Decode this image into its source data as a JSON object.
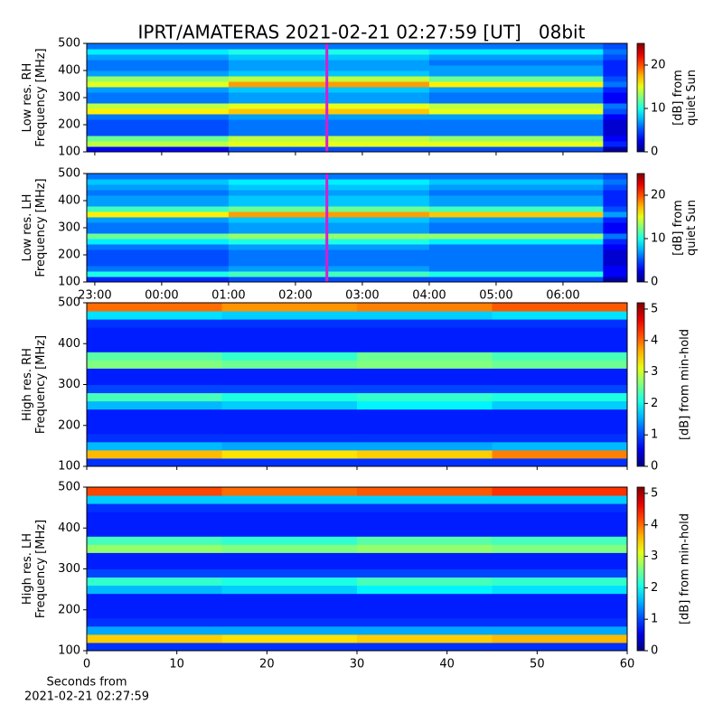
{
  "title": "IPRT/AMATERAS 2021-02-21 02:27:59 [UT]   08bit",
  "chart_data": [
    {
      "type": "heatmap",
      "ylabel": [
        "Low res. RH",
        "Frequency [MHz]"
      ],
      "colorbar_label": [
        "[dB] from",
        "quiet Sun"
      ],
      "x": [
        22.88,
        25,
        28,
        30.6,
        30.96
      ],
      "y": [
        100,
        120,
        140,
        160,
        180,
        200,
        220,
        240,
        260,
        280,
        300,
        320,
        340,
        360,
        380,
        400,
        420,
        440,
        460,
        480,
        500
      ],
      "xlim": [
        22.88,
        30.96
      ],
      "xticks": [
        23,
        24,
        25,
        26,
        27,
        28,
        29,
        30
      ],
      "xtick_labels": false,
      "ylim": [
        100,
        500
      ],
      "yticks": [
        100,
        200,
        300,
        400,
        500
      ],
      "clim": [
        0,
        25
      ],
      "cticks": [
        0,
        10,
        20
      ],
      "markers": [
        {
          "x": 26.47,
          "color": "#d21fd2"
        }
      ],
      "z": [
        [
          3,
          5,
          5,
          1
        ],
        [
          14,
          15,
          15,
          4
        ],
        [
          12,
          14,
          13,
          3
        ],
        [
          5,
          6,
          6,
          2
        ],
        [
          5,
          6,
          6,
          2
        ],
        [
          5,
          6,
          6,
          2
        ],
        [
          6,
          7,
          7,
          3
        ],
        [
          16,
          17,
          15,
          5
        ],
        [
          14,
          15,
          14,
          6
        ],
        [
          6,
          7,
          6,
          3
        ],
        [
          6,
          7,
          6,
          3
        ],
        [
          7,
          8,
          7,
          4
        ],
        [
          15,
          18,
          16,
          6
        ],
        [
          13,
          14,
          12,
          5
        ],
        [
          7,
          8,
          7,
          4
        ],
        [
          6,
          7,
          7,
          4
        ],
        [
          6,
          7,
          6,
          4
        ],
        [
          7,
          8,
          7,
          5
        ],
        [
          9,
          10,
          9,
          6
        ],
        [
          6,
          6,
          6,
          5
        ]
      ]
    },
    {
      "type": "heatmap",
      "ylabel": [
        "Low res. LH",
        "Frequency [MHz]"
      ],
      "colorbar_label": [
        "[dB] from",
        "quiet Sun"
      ],
      "x": [
        22.88,
        25,
        28,
        30.6,
        30.96
      ],
      "y": [
        100,
        120,
        140,
        160,
        180,
        200,
        220,
        240,
        260,
        280,
        300,
        320,
        340,
        360,
        380,
        400,
        420,
        440,
        460,
        480,
        500
      ],
      "xlim": [
        22.88,
        30.96
      ],
      "xticks": [
        {
          "value": 23,
          "label": "23:00"
        },
        {
          "value": 24,
          "label": "00:00"
        },
        {
          "value": 25,
          "label": "01:00"
        },
        {
          "value": 26,
          "label": "02:00"
        },
        {
          "value": 27,
          "label": "03:00"
        },
        {
          "value": 28,
          "label": "04:00"
        },
        {
          "value": 29,
          "label": "05:00"
        },
        {
          "value": 30,
          "label": "06:00"
        }
      ],
      "xtick_labels": true,
      "ylim": [
        100,
        500
      ],
      "yticks": [
        100,
        200,
        300,
        400,
        500
      ],
      "clim": [
        0,
        25
      ],
      "cticks": [
        0,
        10,
        20
      ],
      "markers": [
        {
          "x": 26.47,
          "color": "#d21fd2"
        }
      ],
      "z": [
        [
          4,
          5,
          5,
          1
        ],
        [
          10,
          11,
          10,
          3
        ],
        [
          6,
          7,
          6,
          3
        ],
        [
          5,
          6,
          6,
          2
        ],
        [
          5,
          6,
          6,
          2
        ],
        [
          5,
          6,
          6,
          2
        ],
        [
          6,
          7,
          6,
          3
        ],
        [
          9,
          10,
          9,
          4
        ],
        [
          12,
          13,
          13,
          6
        ],
        [
          6,
          7,
          6,
          3
        ],
        [
          6,
          7,
          6,
          3
        ],
        [
          7,
          8,
          7,
          4
        ],
        [
          16,
          18,
          17,
          7
        ],
        [
          11,
          12,
          11,
          5
        ],
        [
          7,
          8,
          7,
          4
        ],
        [
          7,
          8,
          7,
          4
        ],
        [
          6,
          7,
          6,
          4
        ],
        [
          7,
          8,
          7,
          5
        ],
        [
          8,
          9,
          8,
          6
        ],
        [
          6,
          6,
          6,
          5
        ]
      ]
    },
    {
      "type": "heatmap",
      "ylabel": [
        "High res. RH",
        "Frequency [MHz]"
      ],
      "colorbar_label": [
        "[dB] from min-hold"
      ],
      "x": [
        0,
        15,
        30,
        45,
        60
      ],
      "y": [
        100,
        120,
        140,
        160,
        180,
        200,
        220,
        240,
        260,
        280,
        300,
        320,
        340,
        360,
        380,
        400,
        420,
        440,
        460,
        480,
        500
      ],
      "xlim": [
        0,
        60
      ],
      "xticks": [
        0,
        10,
        20,
        30,
        40,
        50,
        60
      ],
      "xtick_labels": false,
      "ylim": [
        100,
        500
      ],
      "yticks": [
        100,
        200,
        300,
        400,
        500
      ],
      "clim": [
        0,
        5.2
      ],
      "cticks": [
        0,
        1,
        2,
        3,
        4,
        5
      ],
      "z": [
        [
          0.9,
          0.9,
          0.9,
          0.9
        ],
        [
          3.6,
          3.4,
          3.5,
          3.9
        ],
        [
          1.6,
          1.5,
          1.5,
          1.6
        ],
        [
          0.9,
          0.9,
          0.9,
          0.9
        ],
        [
          0.8,
          0.8,
          0.8,
          0.8
        ],
        [
          0.8,
          0.8,
          0.8,
          0.8
        ],
        [
          0.8,
          0.8,
          0.8,
          0.8
        ],
        [
          1.6,
          1.7,
          1.9,
          1.7
        ],
        [
          2.3,
          2.1,
          2.2,
          2.1
        ],
        [
          1,
          1,
          1,
          1
        ],
        [
          0.8,
          0.8,
          0.8,
          0.8
        ],
        [
          0.8,
          0.8,
          0.8,
          0.8
        ],
        [
          2.6,
          2.5,
          2.6,
          2.5
        ],
        [
          2.4,
          2.2,
          2.5,
          2.3
        ],
        [
          0.8,
          0.8,
          0.8,
          0.8
        ],
        [
          0.8,
          0.8,
          0.8,
          0.8
        ],
        [
          0.8,
          0.8,
          0.8,
          0.8
        ],
        [
          0.9,
          0.9,
          0.9,
          0.9
        ],
        [
          1.8,
          1.7,
          1.7,
          1.8
        ],
        [
          4,
          3.8,
          3.9,
          4.1
        ]
      ]
    },
    {
      "type": "heatmap",
      "ylabel": [
        "High res. LH",
        "Frequency [MHz]"
      ],
      "colorbar_label": [
        "[dB] from min-hold"
      ],
      "x": [
        0,
        15,
        30,
        45,
        60
      ],
      "y": [
        100,
        120,
        140,
        160,
        180,
        200,
        220,
        240,
        260,
        280,
        300,
        320,
        340,
        360,
        380,
        400,
        420,
        440,
        460,
        480,
        500
      ],
      "xlim": [
        0,
        60
      ],
      "xticks": [
        0,
        10,
        20,
        30,
        40,
        50,
        60
      ],
      "xtick_labels": true,
      "xlabel": [
        "Seconds from",
        "2021-02-21 02:27:59"
      ],
      "ylim": [
        100,
        500
      ],
      "yticks": [
        100,
        200,
        300,
        400,
        500
      ],
      "clim": [
        0,
        5.2
      ],
      "cticks": [
        0,
        1,
        2,
        3,
        4,
        5
      ],
      "z": [
        [
          0.9,
          0.9,
          0.9,
          0.9
        ],
        [
          3.5,
          3.4,
          3.5,
          3.6
        ],
        [
          1.5,
          1.5,
          1.5,
          1.5
        ],
        [
          0.9,
          0.9,
          0.9,
          0.9
        ],
        [
          0.8,
          0.8,
          0.8,
          0.8
        ],
        [
          0.8,
          0.8,
          0.8,
          0.8
        ],
        [
          0.8,
          0.8,
          0.8,
          0.8
        ],
        [
          1.6,
          1.7,
          1.9,
          1.8
        ],
        [
          2.2,
          2.1,
          2.3,
          2.2
        ],
        [
          1,
          1,
          1,
          1
        ],
        [
          0.8,
          0.8,
          0.8,
          0.8
        ],
        [
          0.8,
          0.8,
          0.8,
          0.8
        ],
        [
          2.7,
          2.6,
          2.7,
          2.6
        ],
        [
          2.3,
          2.2,
          2.4,
          2.3
        ],
        [
          0.8,
          0.8,
          0.8,
          0.8
        ],
        [
          0.8,
          0.8,
          0.8,
          0.8
        ],
        [
          0.8,
          0.8,
          0.8,
          0.8
        ],
        [
          0.9,
          0.9,
          0.9,
          0.9
        ],
        [
          1.7,
          1.7,
          1.7,
          1.7
        ],
        [
          4.2,
          4,
          4.1,
          4.3
        ]
      ]
    }
  ]
}
